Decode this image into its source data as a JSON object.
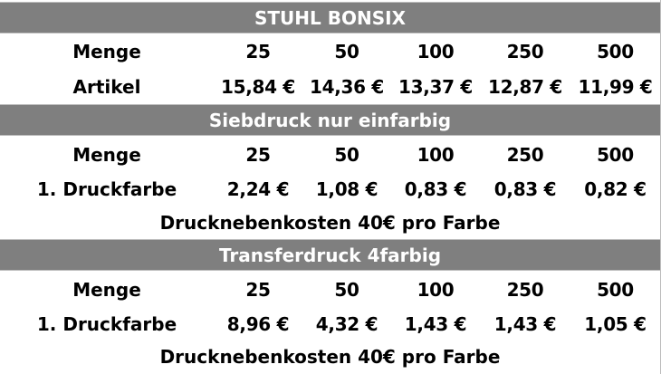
{
  "colors": {
    "header_bg": "#7f7f7f",
    "header_text": "#ffffff",
    "body_bg": "#ffffff",
    "body_text": "#000000"
  },
  "sections": [
    {
      "title": "STUHL BONSIX",
      "rows": [
        {
          "label": "Menge",
          "values": [
            "25",
            "50",
            "100",
            "250",
            "500"
          ]
        },
        {
          "label": "Artikel",
          "values": [
            "15,84 €",
            "14,36 €",
            "13,37 €",
            "12,87 €",
            "11,99 €"
          ]
        }
      ]
    },
    {
      "title": "Siebdruck nur einfarbig",
      "rows": [
        {
          "label": "Menge",
          "values": [
            "25",
            "50",
            "100",
            "250",
            "500"
          ]
        },
        {
          "label": "1. Druckfarbe",
          "values": [
            "2,24 €",
            "1,08 €",
            "0,83 €",
            "0,83 €",
            "0,82 €"
          ]
        }
      ],
      "note": "Drucknebenkosten 40€ pro Farbe"
    },
    {
      "title": "Transferdruck 4farbig",
      "rows": [
        {
          "label": "Menge",
          "values": [
            "25",
            "50",
            "100",
            "250",
            "500"
          ]
        },
        {
          "label": "1. Druckfarbe",
          "values": [
            "8,96 €",
            "4,32 €",
            "1,43 €",
            "1,43 €",
            "1,05 €"
          ]
        }
      ],
      "note": "Drucknebenkosten 40€ pro Farbe"
    }
  ]
}
